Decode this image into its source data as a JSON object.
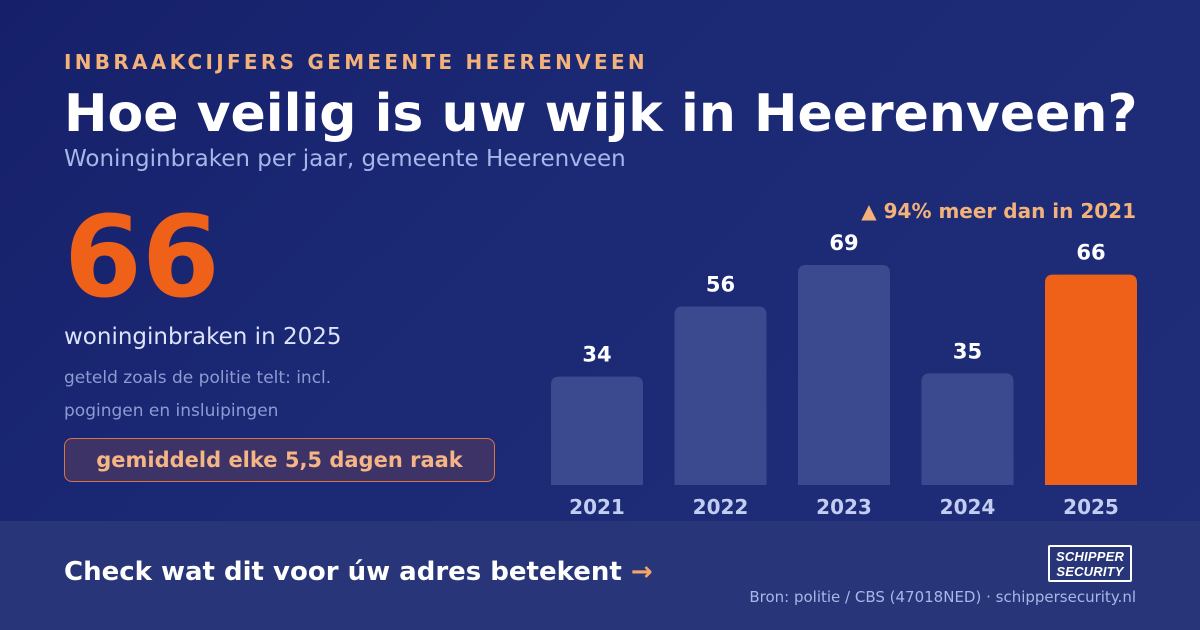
{
  "header": {
    "eyebrow": "INBRAAKCIJFERS GEMEENTE HEERENVEEN",
    "title": "Hoe veilig is uw wijk in Heerenveen?",
    "subtitle": "Woninginbraken per jaar, gemeente Heerenveen"
  },
  "stat": {
    "value": "66",
    "label": "woninginbraken in 2025",
    "note": "geteld zoals de politie telt: incl. pogingen en insluipingen",
    "pill": "gemiddeld elke 5,5 dagen raak"
  },
  "chart_data": {
    "type": "bar",
    "title": "",
    "xlabel": "",
    "ylabel": "",
    "categories": [
      "2021",
      "2022",
      "2023",
      "2024",
      "2025"
    ],
    "values": [
      34,
      56,
      69,
      35,
      66
    ],
    "ylim": [
      0,
      69
    ],
    "grid": false,
    "highlight_category": "2025",
    "annotation": "▲ 94% meer dan in 2021",
    "colors": {
      "bar": "#3b4a8f",
      "highlight": "#ef6018",
      "value_label": "#ffffff",
      "category_label": "#c3cdf2"
    }
  },
  "footer": {
    "cta": "Check wat dit voor úw adres betekent",
    "cta_arrow": "→",
    "logo_line1": "SCHIPPER",
    "logo_line2": "SECURITY",
    "source": "Bron: politie / CBS (47018NED) · schippersecurity.nl"
  }
}
